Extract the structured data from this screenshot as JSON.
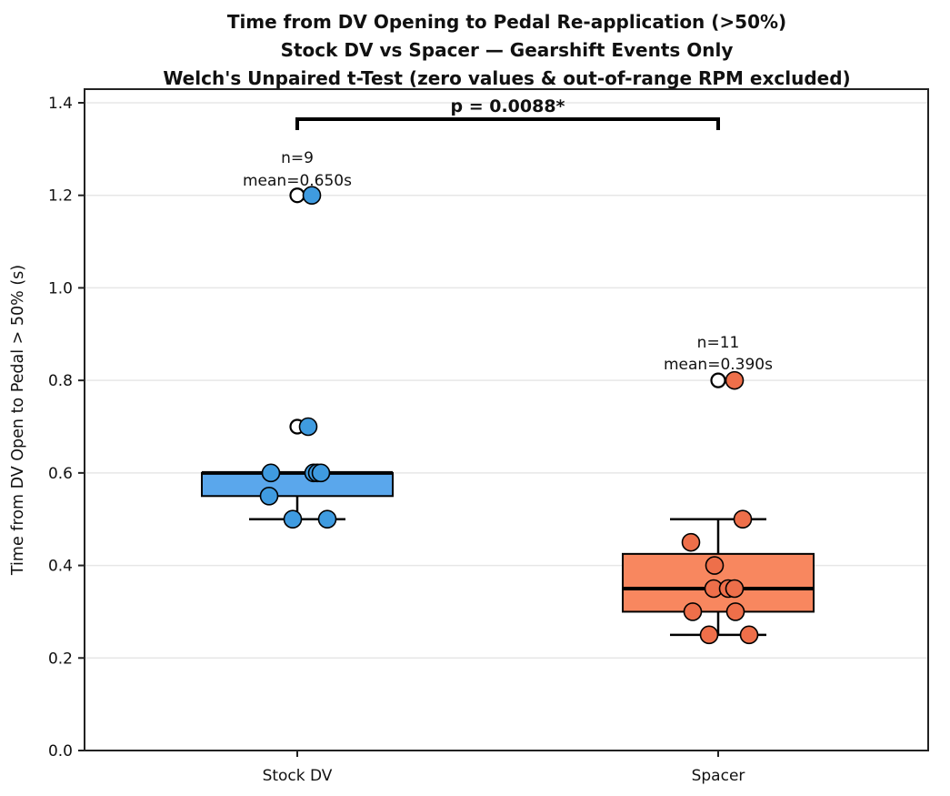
{
  "title": {
    "line1": "Time from DV Opening to Pedal Re-application (>50%)",
    "line2": "Stock DV vs Spacer — Gearshift Events Only",
    "line3": "Welch's Unpaired t-Test (zero values & out-of-range RPM excluded)"
  },
  "chart_data": {
    "type": "box",
    "title": "Time from DV Opening to Pedal Re-application (>50%) / Stock DV vs Spacer — Gearshift Events Only / Welch's Unpaired t-Test (zero values & out-of-range RPM excluded)",
    "ylabel": "Time from DV Open to Pedal > 50% (s)",
    "xlabel": "",
    "ylim": [
      0.0,
      1.43
    ],
    "yticks": [
      0.0,
      0.2,
      0.4,
      0.6,
      0.8,
      1.0,
      1.2,
      1.4
    ],
    "ytick_labels": [
      "0.0",
      "0.2",
      "0.4",
      "0.6",
      "0.8",
      "1.0",
      "1.2",
      "1.4"
    ],
    "categories": [
      "Stock DV",
      "Spacer"
    ],
    "grid": "horizontal",
    "legend": "none",
    "significance": {
      "label": "p = 0.0088*",
      "between": [
        "Stock DV",
        "Spacer"
      ]
    },
    "groups": [
      {
        "label": "Stock DV",
        "n": 9,
        "mean": 0.65,
        "n_label": "n=9",
        "mean_label": "mean=0.650s",
        "values": [
          1.2,
          0.7,
          0.6,
          0.6,
          0.6,
          0.6,
          0.55,
          0.5,
          0.5
        ],
        "box": {
          "whisker_low": 0.5,
          "q1": 0.55,
          "median": 0.6,
          "q3": 0.6,
          "whisker_high": 0.6
        },
        "outliers": [
          0.7,
          1.2
        ],
        "points": [
          {
            "value": 1.2,
            "dx": 16
          },
          {
            "value": 0.7,
            "dx": 12
          },
          {
            "value": 0.6,
            "dx": -29
          },
          {
            "value": 0.6,
            "dx": 18
          },
          {
            "value": 0.6,
            "dx": 22
          },
          {
            "value": 0.6,
            "dx": 26
          },
          {
            "value": 0.55,
            "dx": -31
          },
          {
            "value": 0.5,
            "dx": -5
          },
          {
            "value": 0.5,
            "dx": 33
          }
        ],
        "color_box": "#5aa7ec",
        "color_point": "#3f9be0"
      },
      {
        "label": "Spacer",
        "n": 11,
        "mean": 0.39,
        "n_label": "n=11",
        "mean_label": "mean=0.390s",
        "values": [
          0.8,
          0.5,
          0.45,
          0.4,
          0.35,
          0.35,
          0.35,
          0.3,
          0.3,
          0.25,
          0.25
        ],
        "box": {
          "whisker_low": 0.25,
          "q1": 0.3,
          "median": 0.35,
          "q3": 0.425,
          "whisker_high": 0.5
        },
        "outliers": [
          0.8
        ],
        "points": [
          {
            "value": 0.8,
            "dx": 18
          },
          {
            "value": 0.5,
            "dx": 27
          },
          {
            "value": 0.45,
            "dx": -30
          },
          {
            "value": 0.4,
            "dx": -4
          },
          {
            "value": 0.35,
            "dx": -5
          },
          {
            "value": 0.35,
            "dx": 11
          },
          {
            "value": 0.35,
            "dx": 18
          },
          {
            "value": 0.3,
            "dx": -28
          },
          {
            "value": 0.3,
            "dx": 19
          },
          {
            "value": 0.25,
            "dx": -10
          },
          {
            "value": 0.25,
            "dx": 34
          }
        ],
        "color_box": "#f8875f",
        "color_point": "#ee6f4a"
      }
    ],
    "colors": {
      "grid": "#e7e7e7",
      "spine": "#222222",
      "box_edge": "#000000",
      "median": "#000000",
      "outlier_fill": "#ffffff",
      "text": "#111111"
    }
  }
}
